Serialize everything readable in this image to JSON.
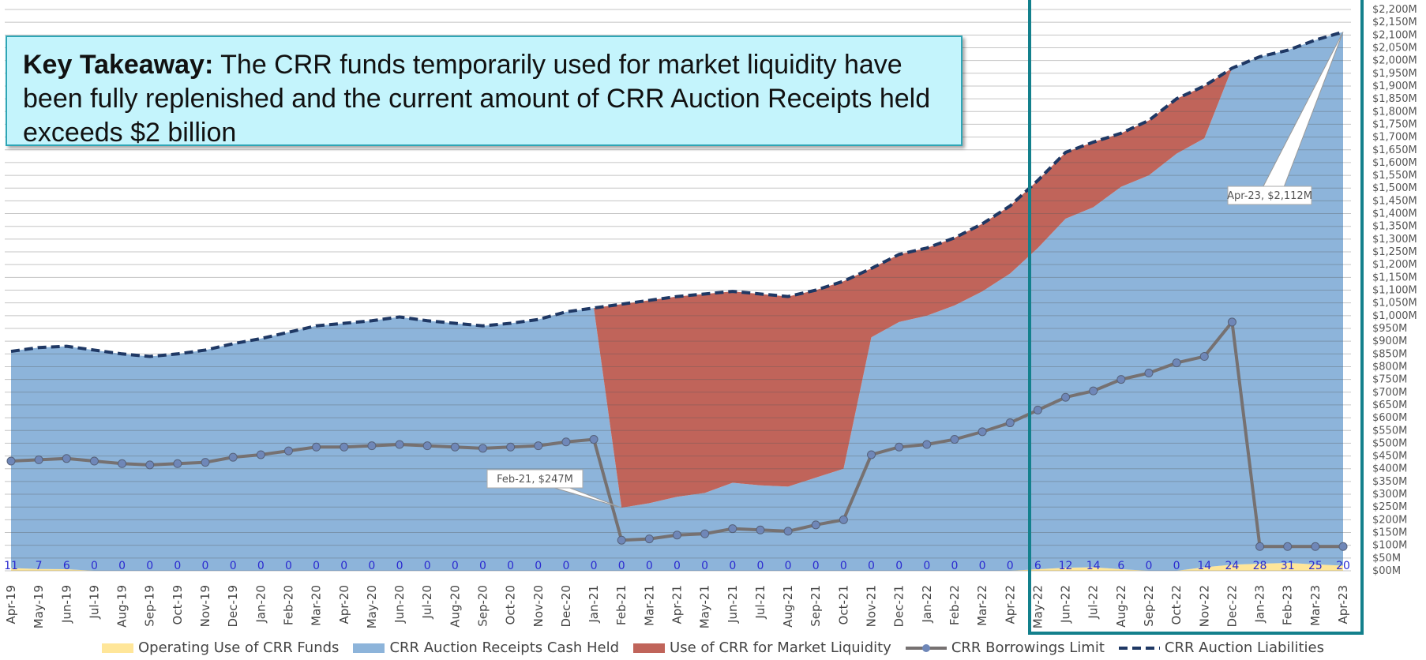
{
  "takeaway": {
    "label": "Key Takeaway:",
    "text": "The CRR funds temporarily used for market liquidity have been fully replenished and the current amount of CRR Auction Receipts held exceeds $2 billion"
  },
  "chart_data": {
    "type": "combo",
    "categories": [
      "Apr-19",
      "May-19",
      "Jun-19",
      "Jul-19",
      "Aug-19",
      "Sep-19",
      "Oct-19",
      "Nov-19",
      "Dec-19",
      "Jan-20",
      "Feb-20",
      "Mar-20",
      "Apr-20",
      "May-20",
      "Jun-20",
      "Jul-20",
      "Aug-20",
      "Sep-20",
      "Oct-20",
      "Nov-20",
      "Dec-20",
      "Jan-21",
      "Feb-21",
      "Mar-21",
      "Apr-21",
      "May-21",
      "Jun-21",
      "Jul-21",
      "Aug-21",
      "Sep-21",
      "Oct-21",
      "Nov-21",
      "Dec-21",
      "Jan-22",
      "Feb-22",
      "Mar-22",
      "Apr-22",
      "May-22",
      "Jun-22",
      "Jul-22",
      "Aug-22",
      "Sep-22",
      "Oct-22",
      "Nov-22",
      "Dec-22",
      "Jan-23",
      "Feb-23",
      "Mar-23",
      "Apr-23"
    ],
    "series": [
      {
        "name": "Operating Use of CRR Funds",
        "type": "area",
        "color": "#ffe699",
        "data_labels": true,
        "values": [
          11,
          7,
          6,
          0,
          0,
          0,
          0,
          0,
          0,
          0,
          0,
          0,
          0,
          0,
          0,
          0,
          0,
          0,
          0,
          0,
          0,
          0,
          0,
          0,
          0,
          0,
          0,
          0,
          0,
          0,
          0,
          0,
          0,
          0,
          0,
          0,
          0,
          6,
          12,
          14,
          6,
          0,
          0,
          14,
          24,
          28,
          31,
          25,
          20
        ]
      },
      {
        "name": "CRR Auction Receipts Cash Held",
        "type": "area",
        "color": "#8db4da",
        "values": [
          850,
          868,
          874,
          865,
          850,
          840,
          850,
          865,
          890,
          910,
          935,
          960,
          970,
          980,
          995,
          980,
          970,
          960,
          970,
          985,
          1015,
          1030,
          247,
          265,
          290,
          305,
          345,
          335,
          330,
          365,
          400,
          915,
          975,
          1000,
          1040,
          1095,
          1165,
          1259,
          1368,
          1411,
          1499,
          1550,
          1635,
          1681,
          1946,
          1987,
          2009,
          2055,
          2092
        ]
      },
      {
        "name": "Use of CRR for Market Liquidity",
        "type": "area",
        "color": "#c0645a",
        "values": [
          0,
          0,
          0,
          0,
          0,
          0,
          0,
          0,
          0,
          0,
          0,
          0,
          0,
          0,
          0,
          0,
          0,
          0,
          0,
          0,
          0,
          0,
          798,
          795,
          785,
          780,
          750,
          750,
          745,
          735,
          735,
          270,
          265,
          265,
          265,
          265,
          265,
          265,
          260,
          255,
          210,
          215,
          215,
          205,
          0,
          0,
          0,
          0,
          0
        ]
      },
      {
        "name": "CRR Borrowings Limit",
        "type": "line",
        "color": "#767171",
        "marker_color": "#6f87b8",
        "values": [
          430,
          435,
          440,
          430,
          420,
          415,
          420,
          425,
          445,
          455,
          470,
          485,
          485,
          490,
          495,
          490,
          485,
          480,
          485,
          490,
          505,
          515,
          120,
          125,
          140,
          145,
          165,
          160,
          155,
          180,
          200,
          455,
          485,
          495,
          515,
          545,
          580,
          630,
          680,
          705,
          750,
          775,
          815,
          840,
          975,
          95,
          95,
          95,
          95
        ]
      },
      {
        "name": "CRR Auction Liabilities",
        "type": "line",
        "dashed": true,
        "color": "#1f3864",
        "values": [
          860,
          875,
          880,
          865,
          850,
          840,
          850,
          865,
          890,
          910,
          935,
          960,
          970,
          980,
          995,
          980,
          970,
          960,
          970,
          985,
          1015,
          1030,
          1045,
          1060,
          1075,
          1085,
          1095,
          1085,
          1075,
          1100,
          1135,
          1185,
          1240,
          1265,
          1305,
          1360,
          1430,
          1530,
          1640,
          1680,
          1715,
          1765,
          1850,
          1900,
          1970,
          2015,
          2040,
          2080,
          2112
        ]
      }
    ],
    "annotations": [
      {
        "text": "Feb-21, $247M",
        "category": "Feb-21",
        "value": 247
      },
      {
        "text": "Apr-23, $2,112M",
        "category": "Apr-23",
        "value": 2112
      }
    ],
    "ylim": [
      0,
      2200
    ],
    "yticks": [
      {
        "value": 0,
        "label": "$00M"
      },
      {
        "value": 50,
        "label": "$50M"
      },
      {
        "value": 100,
        "label": "$100M"
      },
      {
        "value": 150,
        "label": "$150M"
      },
      {
        "value": 200,
        "label": "$200M"
      },
      {
        "value": 250,
        "label": "$250M"
      },
      {
        "value": 300,
        "label": "$300M"
      },
      {
        "value": 350,
        "label": "$350M"
      },
      {
        "value": 400,
        "label": "$400M"
      },
      {
        "value": 450,
        "label": "$450M"
      },
      {
        "value": 500,
        "label": "$500M"
      },
      {
        "value": 550,
        "label": "$550M"
      },
      {
        "value": 600,
        "label": "$600M"
      },
      {
        "value": 650,
        "label": "$650M"
      },
      {
        "value": 700,
        "label": "$700M"
      },
      {
        "value": 750,
        "label": "$750M"
      },
      {
        "value": 800,
        "label": "$800M"
      },
      {
        "value": 850,
        "label": "$850M"
      },
      {
        "value": 900,
        "label": "$900M"
      },
      {
        "value": 950,
        "label": "$950M"
      },
      {
        "value": 1000,
        "label": "$1,000M"
      },
      {
        "value": 1050,
        "label": "$1,050M"
      },
      {
        "value": 1100,
        "label": "$1,100M"
      },
      {
        "value": 1150,
        "label": "$1,150M"
      },
      {
        "value": 1200,
        "label": "$1,200M"
      },
      {
        "value": 1250,
        "label": "$1,250M"
      },
      {
        "value": 1300,
        "label": "$1,300M"
      },
      {
        "value": 1350,
        "label": "$1,350M"
      },
      {
        "value": 1400,
        "label": "$1,400M"
      },
      {
        "value": 1450,
        "label": "$1,450M"
      },
      {
        "value": 1500,
        "label": "$1,500M"
      },
      {
        "value": 1550,
        "label": "$1,550M"
      },
      {
        "value": 1600,
        "label": "$1,600M"
      },
      {
        "value": 1650,
        "label": "$1,650M"
      },
      {
        "value": 1700,
        "label": "$1,700M"
      },
      {
        "value": 1750,
        "label": "$1,750M"
      },
      {
        "value": 1800,
        "label": "$1,800M"
      },
      {
        "value": 1850,
        "label": "$1,850M"
      },
      {
        "value": 1900,
        "label": "$1,900M"
      },
      {
        "value": 1950,
        "label": "$1,950M"
      },
      {
        "value": 2000,
        "label": "$2,000M"
      },
      {
        "value": 2050,
        "label": "$2,050M"
      },
      {
        "value": 2100,
        "label": "$2,100M"
      },
      {
        "value": 2150,
        "label": "$2,150M"
      },
      {
        "value": 2200,
        "label": "$2,200M"
      }
    ],
    "grid": true,
    "legend": "bottom"
  }
}
